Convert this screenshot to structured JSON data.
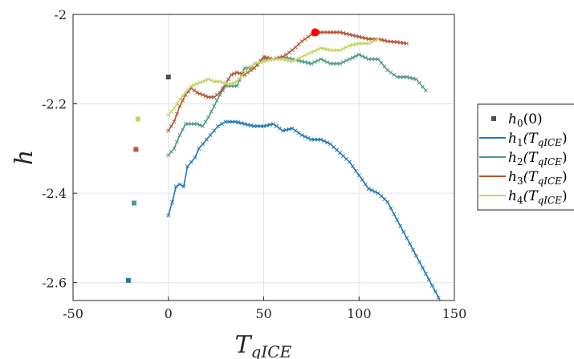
{
  "chart_data": {
    "type": "line",
    "title": "",
    "xlabel": "T",
    "xlabel_sub": "qICE",
    "ylabel": "h",
    "xlim": [
      -50,
      150
    ],
    "ylim": [
      -2.64,
      -2.0
    ],
    "xticks": [
      -50,
      0,
      50,
      100,
      150
    ],
    "xtick_labels": [
      "-50",
      "0",
      "50",
      "100",
      "150"
    ],
    "yticks": [
      -2.6,
      -2.4,
      -2.2,
      -2.0
    ],
    "ytick_labels": [
      "-2.6",
      "-2.4",
      "-2.2",
      "-2"
    ],
    "grid": true,
    "legend_position": "right-outside",
    "initial_points": {
      "name": "h0(0)",
      "points": [
        {
          "x": 0,
          "y": -2.14,
          "color": "#4d4d4d"
        },
        {
          "x": -21,
          "y": -2.595,
          "color": "#1f77a8"
        },
        {
          "x": -18,
          "y": -2.422,
          "color": "#4f9a84"
        },
        {
          "x": -17,
          "y": -2.302,
          "color": "#b8583a"
        },
        {
          "x": -16,
          "y": -2.234,
          "color": "#c5d36a"
        }
      ]
    },
    "series": [
      {
        "name": "h1(TqICE)",
        "color": "#1f77b4",
        "x": [
          0,
          2,
          4,
          6,
          8,
          10,
          12,
          14,
          16,
          18,
          20,
          22,
          24,
          26,
          28,
          30,
          32,
          35,
          40,
          45,
          50,
          55,
          60,
          65,
          70,
          75,
          80,
          85,
          90,
          95,
          100,
          105,
          110,
          115,
          120,
          125,
          130,
          135,
          140,
          145
        ],
        "y": [
          -2.45,
          -2.42,
          -2.385,
          -2.38,
          -2.385,
          -2.34,
          -2.33,
          -2.32,
          -2.3,
          -2.29,
          -2.28,
          -2.27,
          -2.26,
          -2.25,
          -2.245,
          -2.24,
          -2.24,
          -2.24,
          -2.245,
          -2.25,
          -2.25,
          -2.245,
          -2.26,
          -2.255,
          -2.27,
          -2.28,
          -2.28,
          -2.29,
          -2.31,
          -2.33,
          -2.36,
          -2.39,
          -2.4,
          -2.42,
          -2.46,
          -2.5,
          -2.54,
          -2.58,
          -2.62,
          -2.66
        ]
      },
      {
        "name": "h2(TqICE)",
        "color": "#4e9a80",
        "x": [
          0,
          3,
          6,
          9,
          12,
          15,
          18,
          21,
          24,
          27,
          30,
          33,
          36,
          40,
          45,
          50,
          55,
          60,
          65,
          70,
          75,
          80,
          85,
          90,
          95,
          100,
          105,
          110,
          115,
          120,
          125,
          130,
          135
        ],
        "y": [
          -2.315,
          -2.3,
          -2.27,
          -2.245,
          -2.245,
          -2.245,
          -2.25,
          -2.23,
          -2.205,
          -2.18,
          -2.16,
          -2.16,
          -2.16,
          -2.12,
          -2.12,
          -2.1,
          -2.1,
          -2.095,
          -2.1,
          -2.105,
          -2.11,
          -2.1,
          -2.11,
          -2.11,
          -2.1,
          -2.09,
          -2.1,
          -2.1,
          -2.125,
          -2.14,
          -2.14,
          -2.145,
          -2.17
        ]
      },
      {
        "name": "h3(TqICE)",
        "color": "#b35432",
        "x": [
          0,
          3,
          6,
          9,
          12,
          15,
          18,
          21,
          24,
          27,
          30,
          33,
          36,
          40,
          45,
          50,
          55,
          60,
          65,
          70,
          75,
          77,
          80,
          85,
          90,
          95,
          100,
          105,
          110,
          115,
          120,
          125
        ],
        "y": [
          -2.26,
          -2.24,
          -2.205,
          -2.18,
          -2.165,
          -2.175,
          -2.18,
          -2.185,
          -2.185,
          -2.175,
          -2.155,
          -2.135,
          -2.13,
          -2.135,
          -2.12,
          -2.095,
          -2.1,
          -2.095,
          -2.08,
          -2.06,
          -2.045,
          -2.04,
          -2.04,
          -2.04,
          -2.04,
          -2.045,
          -2.05,
          -2.055,
          -2.055,
          -2.06,
          -2.062,
          -2.065
        ]
      },
      {
        "name": "h4(TqICE)",
        "color": "#c8d36a",
        "x": [
          0,
          3,
          6,
          9,
          12,
          15,
          18,
          21,
          24,
          27,
          30,
          33,
          36,
          40,
          45,
          50,
          55,
          60,
          65,
          70,
          75,
          80,
          85,
          90,
          95,
          100,
          105,
          110
        ],
        "y": [
          -2.225,
          -2.21,
          -2.19,
          -2.175,
          -2.16,
          -2.155,
          -2.15,
          -2.145,
          -2.15,
          -2.15,
          -2.155,
          -2.155,
          -2.15,
          -2.13,
          -2.11,
          -2.105,
          -2.1,
          -2.1,
          -2.105,
          -2.095,
          -2.085,
          -2.075,
          -2.08,
          -2.08,
          -2.07,
          -2.065,
          -2.065,
          -2.055
        ]
      }
    ],
    "highlight_point": {
      "x": 77,
      "y": -2.04,
      "color": "#ff0000"
    },
    "legend": {
      "entries": [
        {
          "text": "h0(0)",
          "base": "h",
          "sub": "0",
          "arg": "(0)",
          "marker": "square",
          "color": "#4d4d4d"
        },
        {
          "text": "h1(TqICE)",
          "base": "h",
          "sub": "1",
          "arg": "(T",
          "argsub": "qICE",
          "tail": ")",
          "marker": "line",
          "color": "#1f77b4"
        },
        {
          "text": "h2(TqICE)",
          "base": "h",
          "sub": "2",
          "arg": "(T",
          "argsub": "qICE",
          "tail": ")",
          "marker": "line",
          "color": "#4e9a80"
        },
        {
          "text": "h3(TqICE)",
          "base": "h",
          "sub": "3",
          "arg": "(T",
          "argsub": "qICE",
          "tail": ")",
          "marker": "line",
          "color": "#b35432"
        },
        {
          "text": "h4(TqICE)",
          "base": "h",
          "sub": "4",
          "arg": "(T",
          "argsub": "qICE",
          "tail": ")",
          "marker": "line",
          "color": "#c8d36a"
        }
      ]
    }
  }
}
